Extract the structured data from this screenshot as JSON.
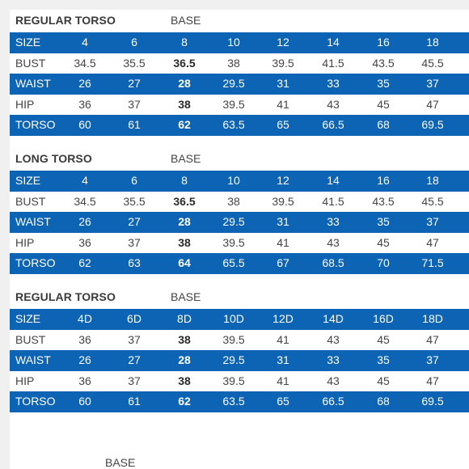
{
  "sections": [
    {
      "title": "REGULAR TORSO",
      "base_label": "BASE",
      "rows": [
        {
          "label": "SIZE",
          "values": [
            "4",
            "6",
            "8",
            "10",
            "12",
            "14",
            "16",
            "18"
          ]
        },
        {
          "label": "BUST",
          "values": [
            "34.5",
            "35.5",
            "36.5",
            "38",
            "39.5",
            "41.5",
            "43.5",
            "45.5"
          ]
        },
        {
          "label": "WAIST",
          "values": [
            "26",
            "27",
            "28",
            "29.5",
            "31",
            "33",
            "35",
            "37"
          ]
        },
        {
          "label": "HIP",
          "values": [
            "36",
            "37",
            "38",
            "39.5",
            "41",
            "43",
            "45",
            "47"
          ]
        },
        {
          "label": "TORSO",
          "values": [
            "60",
            "61",
            "62",
            "63.5",
            "65",
            "66.5",
            "68",
            "69.5"
          ]
        }
      ]
    },
    {
      "title": "LONG TORSO",
      "base_label": "BASE",
      "rows": [
        {
          "label": "SIZE",
          "values": [
            "4",
            "6",
            "8",
            "10",
            "12",
            "14",
            "16",
            "18"
          ]
        },
        {
          "label": "BUST",
          "values": [
            "34.5",
            "35.5",
            "36.5",
            "38",
            "39.5",
            "41.5",
            "43.5",
            "45.5"
          ]
        },
        {
          "label": "WAIST",
          "values": [
            "26",
            "27",
            "28",
            "29.5",
            "31",
            "33",
            "35",
            "37"
          ]
        },
        {
          "label": "HIP",
          "values": [
            "36",
            "37",
            "38",
            "39.5",
            "41",
            "43",
            "45",
            "47"
          ]
        },
        {
          "label": "TORSO",
          "values": [
            "62",
            "63",
            "64",
            "65.5",
            "67",
            "68.5",
            "70",
            "71.5"
          ]
        }
      ]
    },
    {
      "title": "REGULAR TORSO",
      "base_label": "BASE",
      "rows": [
        {
          "label": "SIZE",
          "values": [
            "4D",
            "6D",
            "8D",
            "10D",
            "12D",
            "14D",
            "16D",
            "18D"
          ]
        },
        {
          "label": "BUST",
          "values": [
            "36",
            "37",
            "38",
            "39.5",
            "41",
            "43",
            "45",
            "47"
          ]
        },
        {
          "label": "WAIST",
          "values": [
            "26",
            "27",
            "28",
            "29.5",
            "31",
            "33",
            "35",
            "37"
          ]
        },
        {
          "label": "HIP",
          "values": [
            "36",
            "37",
            "38",
            "39.5",
            "41",
            "43",
            "45",
            "47"
          ]
        },
        {
          "label": "TORSO",
          "values": [
            "60",
            "61",
            "62",
            "63.5",
            "65",
            "66.5",
            "68",
            "69.5"
          ]
        }
      ]
    }
  ],
  "footer": {
    "base_label": "BASE"
  },
  "colors": {
    "header_row": "#0d63b4",
    "header_text": "#ffffff",
    "body_text": "#444444"
  }
}
